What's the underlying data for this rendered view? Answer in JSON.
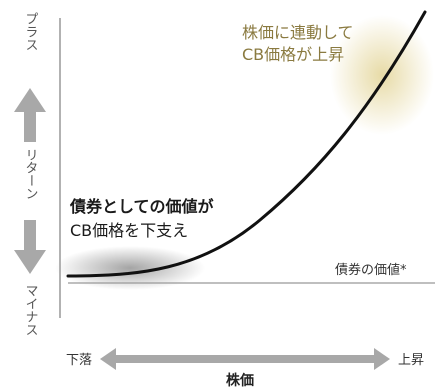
{
  "y_axis": {
    "top_label": "プラス",
    "middle_label": "リターン",
    "bottom_label": "マイナス"
  },
  "x_axis": {
    "left_label": "下落",
    "center_label": "株価",
    "right_label": "上昇"
  },
  "annotations": {
    "top_right": [
      "株価に連動して",
      "CB価格が上昇"
    ],
    "bottom_left": [
      "債券としての価値が",
      "CB価格を下支え"
    ],
    "bond_line_label": "債券の価値*"
  },
  "colors": {
    "curve": "#111111",
    "bond_line": "#999999",
    "arrow": "#a8a8a8",
    "gold_glow": "#e6d9a2",
    "gray_glow": "#9a9a9a"
  }
}
